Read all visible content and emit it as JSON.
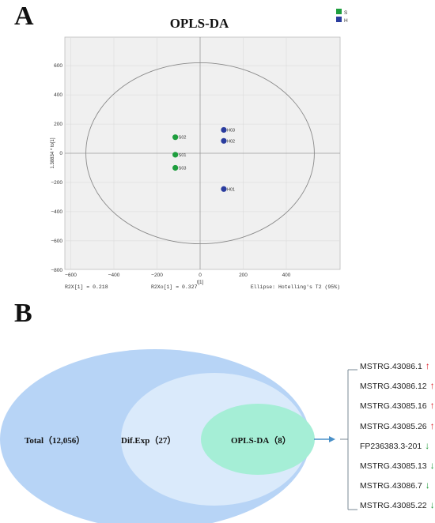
{
  "panelA": {
    "letter": "A",
    "chart_data": {
      "type": "scatter",
      "title": "OPLS-DA",
      "xlabel": "t[1]",
      "ylabel": "1.38834 * to[1]",
      "xlim": [
        -600,
        600
      ],
      "ylim": [
        -800,
        650
      ],
      "xticks": [
        -600,
        -400,
        -200,
        0,
        200,
        400
      ],
      "yticks": [
        -800,
        -600,
        -400,
        -200,
        0,
        200,
        400,
        600
      ],
      "grid": true,
      "legend": "top-right",
      "series": [
        {
          "name": "S",
          "color": "#1e9e3e",
          "points": [
            {
              "label": "S02",
              "x": -115,
              "y": 110
            },
            {
              "label": "S01",
              "x": -115,
              "y": -10
            },
            {
              "label": "S03",
              "x": -115,
              "y": -100
            }
          ]
        },
        {
          "name": "H",
          "color": "#2a3c9e",
          "points": [
            {
              "label": "H03",
              "x": 110,
              "y": 160
            },
            {
              "label": "H02",
              "x": 110,
              "y": 85
            },
            {
              "label": "H01",
              "x": 110,
              "y": -245
            }
          ]
        }
      ],
      "ellipse": {
        "cx": 0,
        "cy": 0,
        "rx": 530,
        "ry": 620
      },
      "footer": {
        "left": "R2X[1] = 0.218",
        "middle": "R2Xo[1] = 0.327",
        "right": "Ellipse: Hotelling's T2 (95%)"
      }
    }
  },
  "panelB": {
    "letter": "B",
    "sets": {
      "total": "Total（12,056）",
      "difexp": "Dif.Exp（27）",
      "oplsda": "OPLS-DA（8）"
    },
    "genes": [
      {
        "name": "MSTRG.43086.1",
        "direction": "up"
      },
      {
        "name": "MSTRG.43086.12",
        "direction": "up"
      },
      {
        "name": "MSTRG.43085.16",
        "direction": "up"
      },
      {
        "name": "MSTRG.43085.26",
        "direction": "up"
      },
      {
        "name": "FP236383.3-201",
        "direction": "down"
      },
      {
        "name": "MSTRG.43085.13",
        "direction": "down"
      },
      {
        "name": "MSTRG.43086.7",
        "direction": "down"
      },
      {
        "name": "MSTRG.43085.22",
        "direction": "down"
      }
    ],
    "arrows": {
      "up": "↑",
      "down": "↓"
    },
    "colors": {
      "outer": "#b7d4f6",
      "middle": "#daeafb",
      "inner": "#a5eed6",
      "connector": "#4a90c8",
      "bracket": "#7a8896"
    }
  }
}
